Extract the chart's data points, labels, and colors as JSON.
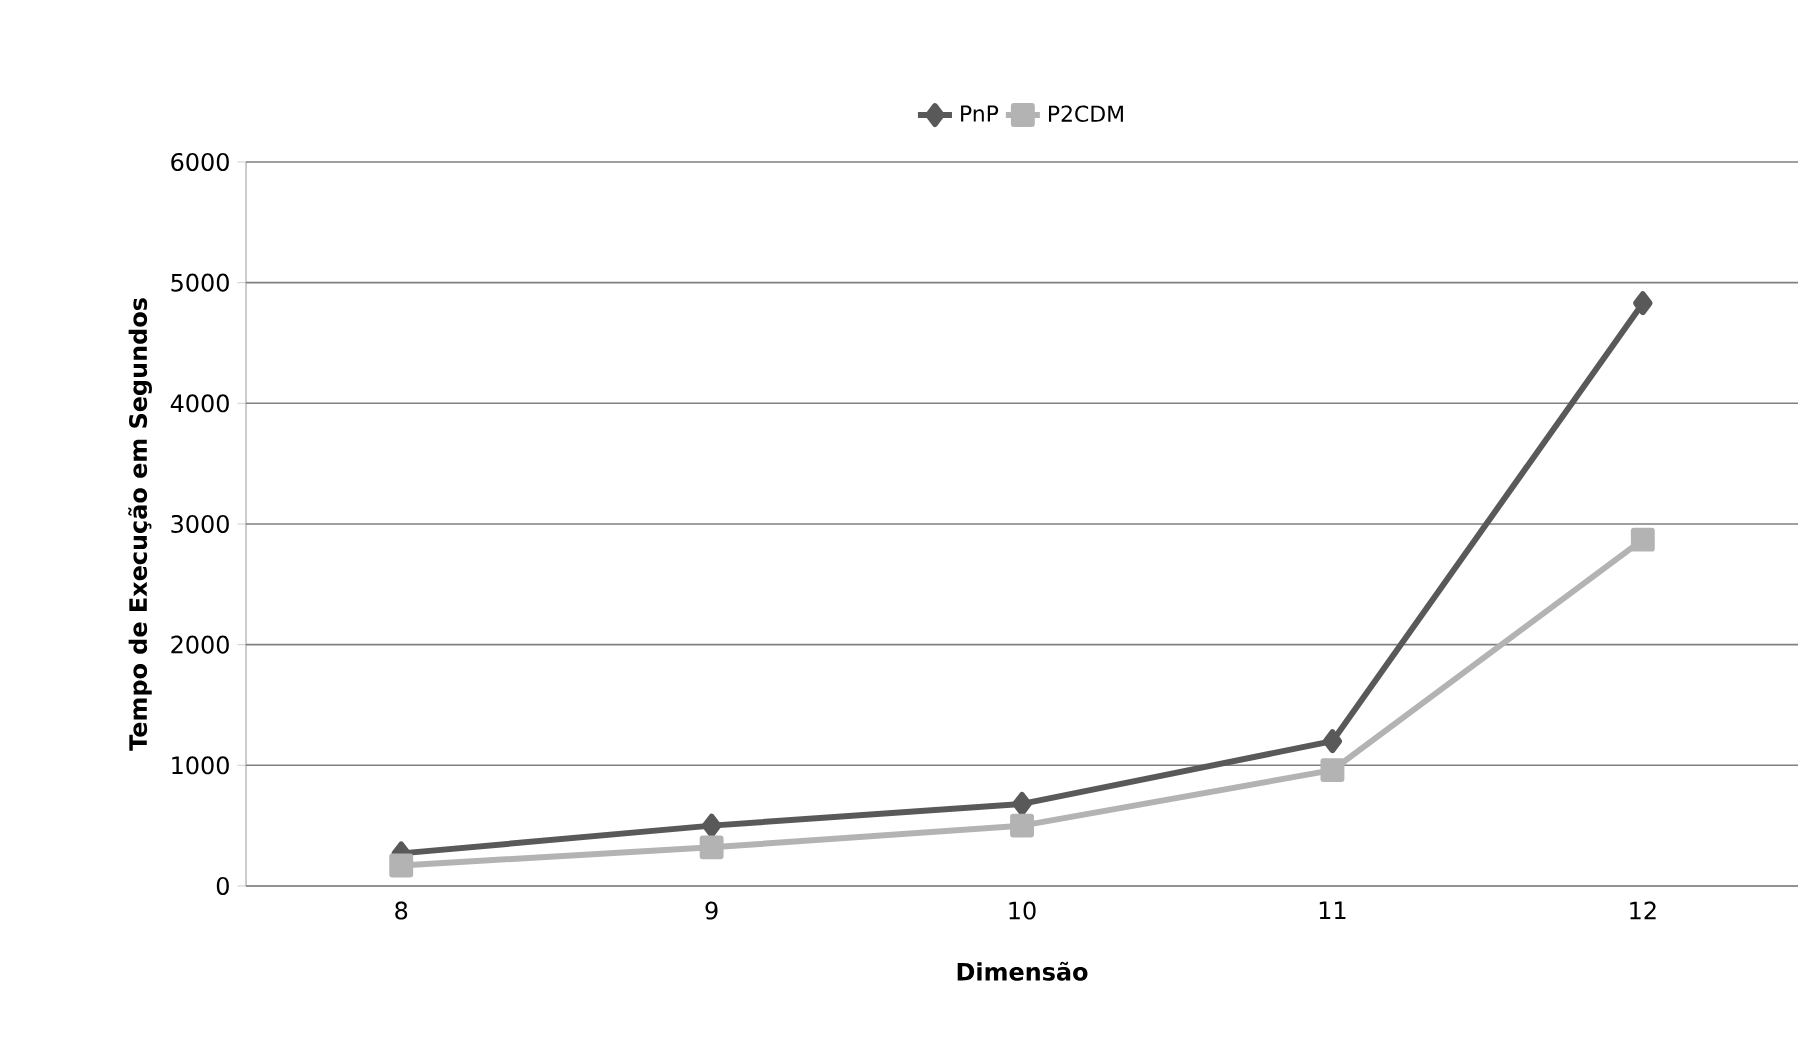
{
  "chart_data": {
    "type": "line",
    "xlabel": "Dimensão",
    "ylabel": "Tempo de Execução  em  Segundos",
    "categories": [
      "8",
      "9",
      "10",
      "11",
      "12"
    ],
    "series": [
      {
        "name": "PnP",
        "color": "#595959",
        "values": [
          270,
          500,
          680,
          1200,
          4830
        ],
        "marker": "diamond"
      },
      {
        "name": "P2CDM",
        "color": "#b3b3b3",
        "values": [
          170,
          320,
          500,
          960,
          2870
        ],
        "marker": "square"
      }
    ],
    "ylim": [
      0,
      6000
    ],
    "yticks": [
      0,
      1000,
      2000,
      3000,
      4000,
      5000,
      6000
    ],
    "grid": "y",
    "legend": "top"
  }
}
